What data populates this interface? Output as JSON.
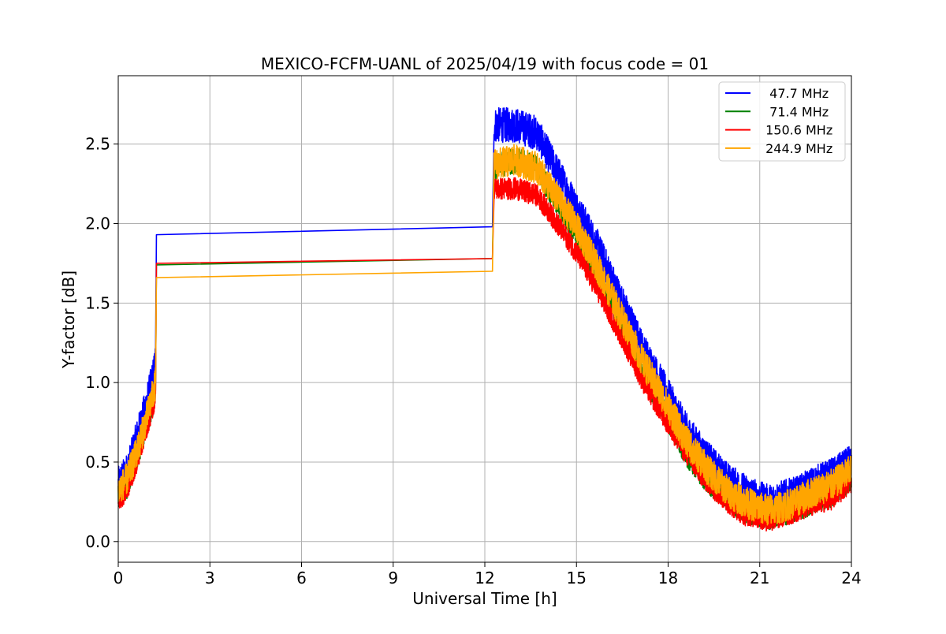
{
  "chart_data": {
    "type": "line",
    "title": "MEXICO-FCFM-UANL of 2025/04/19 with focus code = 01",
    "xlabel": "Universal Time [h]",
    "ylabel": "Y-factor [dB]",
    "xlim": [
      0,
      24
    ],
    "ylim": [
      -0.13,
      2.93
    ],
    "xticks": [
      0,
      3,
      6,
      9,
      12,
      15,
      18,
      21,
      24
    ],
    "xtick_labels": [
      "0",
      "3",
      "6",
      "9",
      "12",
      "15",
      "18",
      "21",
      "24"
    ],
    "yticks": [
      0.0,
      0.5,
      1.0,
      1.5,
      2.0,
      2.5
    ],
    "ytick_labels": [
      "0.0",
      "0.5",
      "1.0",
      "1.5",
      "2.0",
      "2.5"
    ],
    "grid": true,
    "legend_position": "top-right",
    "legend_labels": [
      "  47.7 MHz",
      "  71.4 MHz",
      " 150.6 MHz",
      " 244.9 MHz"
    ],
    "series": [
      {
        "name": "  47.7 MHz",
        "color": "#0000ff",
        "noise": 0.11,
        "points": [
          [
            0,
            0.36
          ],
          [
            0.3,
            0.45
          ],
          [
            0.6,
            0.65
          ],
          [
            0.9,
            0.85
          ],
          [
            1.15,
            1.05
          ],
          [
            1.22,
            1.15
          ],
          [
            1.25,
            1.93
          ],
          [
            12.25,
            1.98
          ],
          [
            12.3,
            2.62
          ],
          [
            13.0,
            2.62
          ],
          [
            13.7,
            2.57
          ],
          [
            14.3,
            2.35
          ],
          [
            15.0,
            2.1
          ],
          [
            15.7,
            1.85
          ],
          [
            16.5,
            1.5
          ],
          [
            17.2,
            1.2
          ],
          [
            18.0,
            0.92
          ],
          [
            18.6,
            0.7
          ],
          [
            19.3,
            0.52
          ],
          [
            20.0,
            0.38
          ],
          [
            20.5,
            0.32
          ],
          [
            21.0,
            0.27
          ],
          [
            21.3,
            0.25
          ],
          [
            21.6,
            0.27
          ],
          [
            22.2,
            0.3
          ],
          [
            22.8,
            0.37
          ],
          [
            23.4,
            0.42
          ],
          [
            24.0,
            0.5
          ]
        ]
      },
      {
        "name": "  71.4 MHz",
        "color": "#008000",
        "noise": 0.08,
        "points": [
          [
            0,
            0.28
          ],
          [
            0.3,
            0.35
          ],
          [
            0.6,
            0.52
          ],
          [
            0.9,
            0.72
          ],
          [
            1.15,
            0.88
          ],
          [
            1.22,
            0.95
          ],
          [
            1.25,
            1.74
          ],
          [
            12.25,
            1.78
          ],
          [
            12.3,
            2.35
          ],
          [
            13.0,
            2.4
          ],
          [
            13.7,
            2.35
          ],
          [
            14.3,
            2.15
          ],
          [
            15.0,
            1.92
          ],
          [
            15.7,
            1.65
          ],
          [
            16.5,
            1.32
          ],
          [
            17.2,
            1.05
          ],
          [
            18.0,
            0.77
          ],
          [
            18.6,
            0.55
          ],
          [
            19.3,
            0.38
          ],
          [
            20.0,
            0.26
          ],
          [
            20.5,
            0.2
          ],
          [
            21.0,
            0.17
          ],
          [
            21.3,
            0.15
          ],
          [
            21.6,
            0.17
          ],
          [
            22.2,
            0.2
          ],
          [
            22.8,
            0.26
          ],
          [
            23.4,
            0.3
          ],
          [
            24.0,
            0.4
          ]
        ]
      },
      {
        "name": " 150.6 MHz",
        "color": "#ff0000",
        "noise": 0.07,
        "points": [
          [
            0,
            0.26
          ],
          [
            0.3,
            0.33
          ],
          [
            0.6,
            0.5
          ],
          [
            0.9,
            0.7
          ],
          [
            1.15,
            0.86
          ],
          [
            1.22,
            0.93
          ],
          [
            1.25,
            1.75
          ],
          [
            12.25,
            1.78
          ],
          [
            12.3,
            2.22
          ],
          [
            13.0,
            2.22
          ],
          [
            13.7,
            2.18
          ],
          [
            14.3,
            2.02
          ],
          [
            15.0,
            1.82
          ],
          [
            15.7,
            1.58
          ],
          [
            16.5,
            1.28
          ],
          [
            17.2,
            1.0
          ],
          [
            18.0,
            0.74
          ],
          [
            18.6,
            0.55
          ],
          [
            19.3,
            0.37
          ],
          [
            20.0,
            0.24
          ],
          [
            20.5,
            0.17
          ],
          [
            21.0,
            0.15
          ],
          [
            21.3,
            0.13
          ],
          [
            21.6,
            0.15
          ],
          [
            22.2,
            0.19
          ],
          [
            22.8,
            0.24
          ],
          [
            23.4,
            0.27
          ],
          [
            24.0,
            0.38
          ]
        ]
      },
      {
        "name": " 244.9 MHz",
        "color": "#ffa500",
        "noise": 0.1,
        "points": [
          [
            0,
            0.32
          ],
          [
            0.3,
            0.4
          ],
          [
            0.6,
            0.56
          ],
          [
            0.9,
            0.76
          ],
          [
            1.15,
            0.94
          ],
          [
            1.22,
            1.0
          ],
          [
            1.25,
            1.66
          ],
          [
            12.25,
            1.7
          ],
          [
            12.3,
            2.37
          ],
          [
            13.0,
            2.4
          ],
          [
            13.7,
            2.35
          ],
          [
            14.3,
            2.18
          ],
          [
            15.0,
            1.98
          ],
          [
            15.7,
            1.72
          ],
          [
            16.5,
            1.4
          ],
          [
            17.2,
            1.12
          ],
          [
            18.0,
            0.85
          ],
          [
            18.6,
            0.63
          ],
          [
            19.3,
            0.45
          ],
          [
            20.0,
            0.31
          ],
          [
            20.5,
            0.25
          ],
          [
            21.0,
            0.21
          ],
          [
            21.3,
            0.2
          ],
          [
            21.6,
            0.21
          ],
          [
            22.2,
            0.25
          ],
          [
            22.8,
            0.32
          ],
          [
            23.4,
            0.36
          ],
          [
            24.0,
            0.45
          ]
        ]
      }
    ]
  }
}
